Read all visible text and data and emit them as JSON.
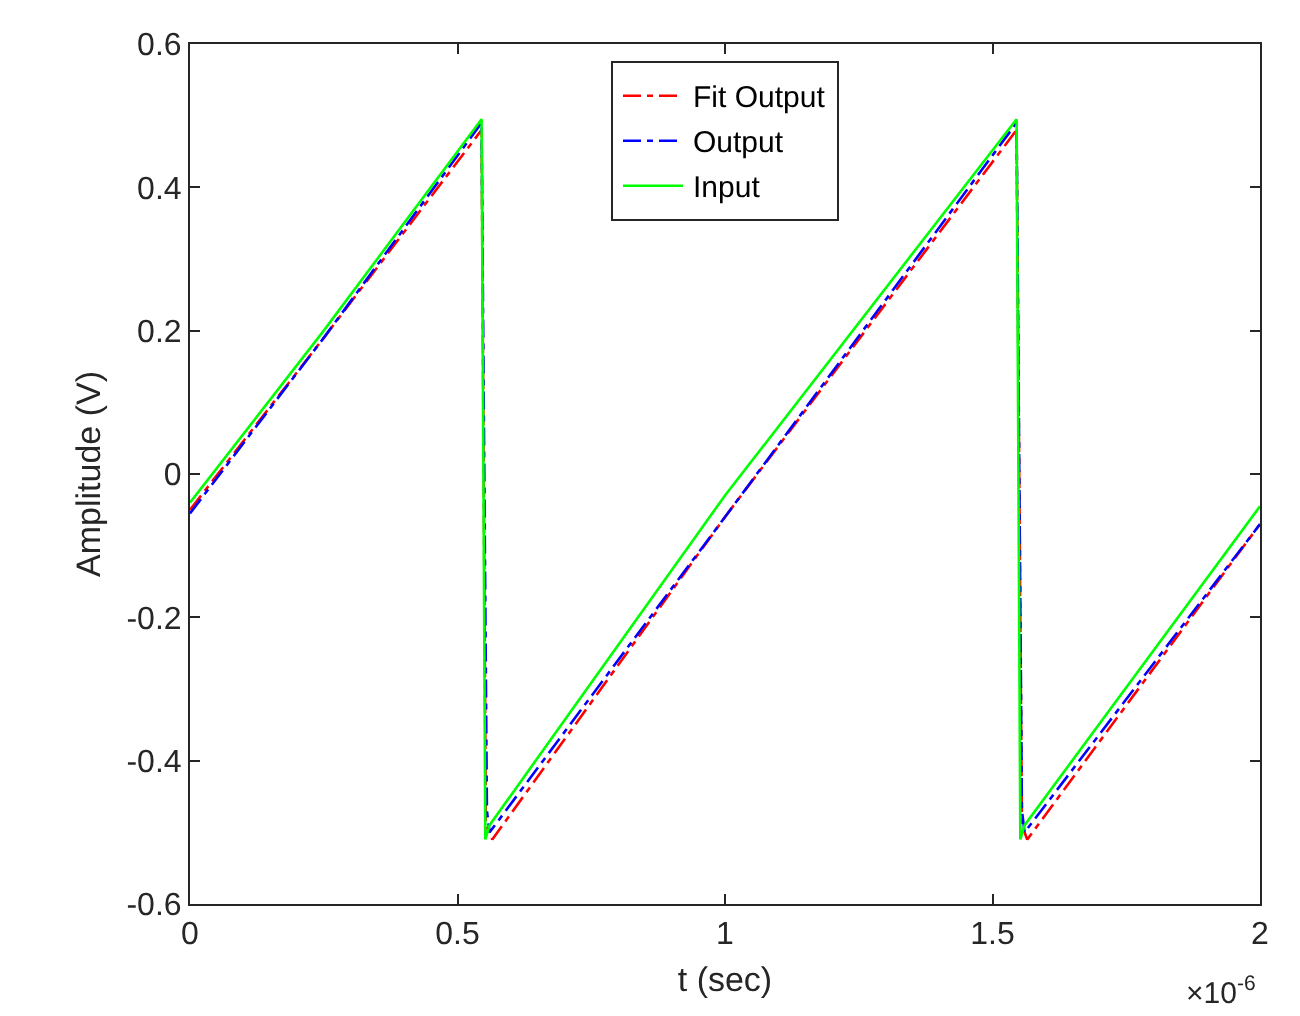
{
  "chart_data": {
    "type": "line",
    "xlabel": "t (sec)",
    "ylabel": "Amplitude (V)",
    "xlim": [
      0,
      2
    ],
    "xticks": [
      0,
      0.5,
      1,
      1.5,
      2
    ],
    "ylim": [
      -0.6,
      0.6
    ],
    "yticks": [
      -0.6,
      -0.4,
      -0.2,
      0,
      0.2,
      0.4,
      0.6
    ],
    "annotations": [
      "×10$^{-6}$"
    ],
    "legend": "top",
    "marker": "none",
    "series": [
      {
        "name": "Fit Output",
        "color": "#ff0000",
        "line_style": "dashdot",
        "x": [
          0,
          0.25,
          0.545,
          0.553,
          0.565,
          1,
          1.545,
          1.555,
          1.565,
          2
        ],
        "values": [
          -0.05,
          0.19,
          0.48,
          -0.49,
          -0.51,
          -0.06,
          0.48,
          -0.49,
          -0.51,
          -0.07
        ]
      },
      {
        "name": "Output",
        "color": "#0000ff",
        "line_style": "dashdot",
        "x": [
          0,
          0.25,
          0.545,
          0.555,
          0.56,
          1,
          1.545,
          1.555,
          1.56,
          2
        ],
        "values": [
          -0.055,
          0.19,
          0.49,
          -0.47,
          -0.5,
          -0.06,
          0.49,
          -0.47,
          -0.5,
          -0.07
        ]
      },
      {
        "name": "Input",
        "color": "#00ff00",
        "line_style": "solid",
        "x": [
          0,
          0.25,
          0.545,
          0.552,
          0.56,
          1,
          1.545,
          1.552,
          1.56,
          2
        ],
        "values": [
          -0.04,
          0.2,
          0.495,
          -0.51,
          -0.49,
          -0.03,
          0.495,
          -0.51,
          -0.49,
          -0.045
        ]
      }
    ]
  }
}
